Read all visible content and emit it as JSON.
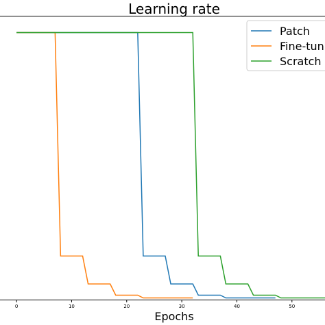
{
  "chart_data": {
    "type": "line",
    "title": "Learning rate",
    "xlabel": "Epochs",
    "ylabel": "",
    "xlim": [
      -3,
      56
    ],
    "ylim": [
      0.00044,
      0.0106
    ],
    "yscale": "linear",
    "xticks": [
      0,
      10,
      20,
      30,
      40,
      50
    ],
    "grid": false,
    "legend_position": "top-right",
    "series": [
      {
        "name": "Patch",
        "color": "#1f77b4",
        "x": [
          0,
          22,
          23,
          27,
          28,
          32,
          33,
          37,
          38,
          42,
          43,
          47
        ],
        "y": [
          0.01,
          0.01,
          0.002,
          0.002,
          0.001,
          0.001,
          0.0006,
          0.0006,
          0.0005,
          0.0005,
          0.0005,
          0.0005
        ]
      },
      {
        "name": "Fine-tuning",
        "color": "#ff7f0e",
        "x": [
          0,
          7,
          8,
          12,
          13,
          17,
          18,
          22,
          23,
          27,
          28,
          32
        ],
        "y": [
          0.01,
          0.01,
          0.002,
          0.002,
          0.001,
          0.001,
          0.0006,
          0.0006,
          0.0005,
          0.0005,
          0.0005,
          0.0005
        ]
      },
      {
        "name": "Scratch",
        "color": "#2ca02c",
        "x": [
          0,
          32,
          33,
          37,
          38,
          42,
          43,
          47,
          48,
          52,
          53,
          56
        ],
        "y": [
          0.01,
          0.01,
          0.002,
          0.002,
          0.001,
          0.001,
          0.0006,
          0.0006,
          0.0005,
          0.0005,
          0.0005,
          0.0005
        ]
      }
    ]
  }
}
